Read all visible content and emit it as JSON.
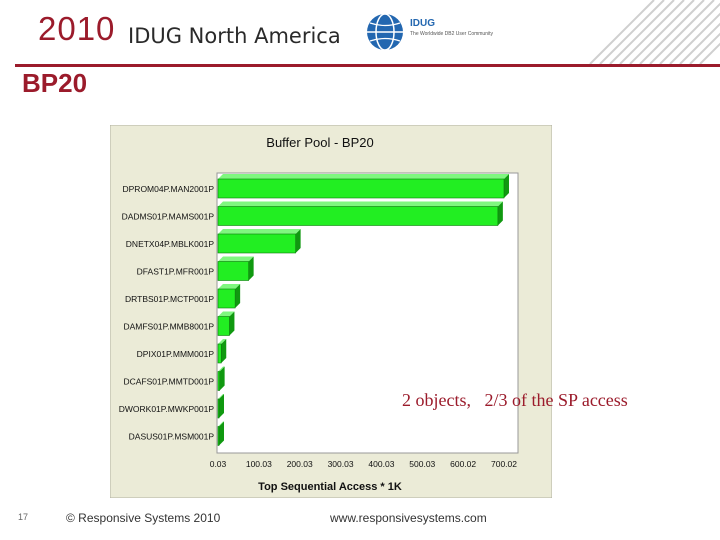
{
  "header": {
    "year": "2010",
    "conference": "IDUG North America",
    "logo_name": "IDUG",
    "logo_tagline": "The Worldwide DB2 User Community",
    "colors": {
      "accent": "#9b1b2b",
      "logo_blue": "#2367b0"
    }
  },
  "slide": {
    "title": "BP20",
    "annotation": "2 objects,   2/3 of the SP access"
  },
  "footer": {
    "page_number": "17",
    "copyright": "© Responsive Systems 2010",
    "url": "www.responsivesystems.com"
  },
  "chart_data": {
    "type": "bar",
    "orientation": "horizontal",
    "title": "Buffer Pool - BP20",
    "xlabel": "Top Sequential Access * 1K",
    "ylabel": "",
    "categories": [
      "DPROM04P.MAN2001P",
      "DADMS01P.MAMS001P",
      "DNETX04P.MBLK001P",
      "DFAST1P.MFR001P",
      "DRTBS01P.MCTP001P",
      "DAMFS01P.MMB8001P",
      "DPIX01P.MMM001P",
      "DCAFS01P.MMTD001P",
      "DWORK01P.MWKP001P",
      "DASUS01P.MSM001P"
    ],
    "values": [
      700,
      685,
      190,
      75,
      42,
      28,
      8,
      4,
      2,
      1
    ],
    "xlim": [
      0.03,
      700.02
    ],
    "xticks": [
      "0.03",
      "100.03",
      "200.03",
      "300.03",
      "400.03",
      "500.03",
      "600.02",
      "700.02"
    ],
    "grid": false,
    "colors": {
      "bar": "#22ee22",
      "bar_side": "#109910",
      "plot_bg": "#ffffff",
      "frame_bg": "#ebebd7"
    }
  }
}
